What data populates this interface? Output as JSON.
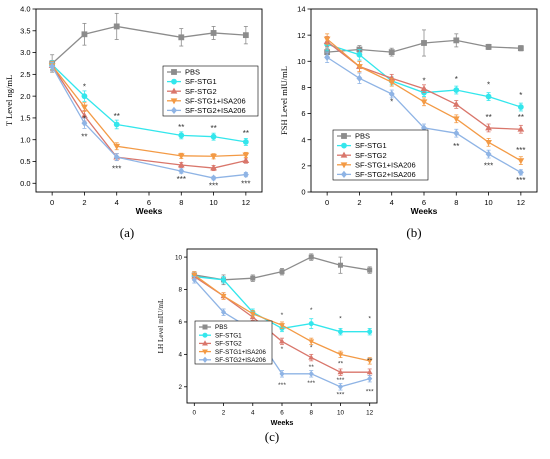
{
  "series_style": [
    {
      "name": "PBS",
      "color": "#8c8c8c",
      "marker": "square"
    },
    {
      "name": "SF-STG1",
      "color": "#33e6ec",
      "marker": "circle"
    },
    {
      "name": "SF-STG2",
      "color": "#d9766b",
      "marker": "triangle-up"
    },
    {
      "name": "SF-STG1+ISA206",
      "color": "#f39a45",
      "marker": "triangle-down"
    },
    {
      "name": "SF-STG2+ISA206",
      "color": "#8fb4e5",
      "marker": "diamond"
    }
  ],
  "chart_data": [
    {
      "type": "line",
      "panel_label": "(a)",
      "xlabel": "Weeks",
      "ylabel": "T Level ng/mL",
      "x": [
        0,
        2,
        4,
        8,
        10,
        12
      ],
      "xlim": [
        -1,
        13
      ],
      "xticks": [
        0,
        2,
        4,
        6,
        8,
        10,
        12
      ],
      "ylim": [
        -0.2,
        4.0
      ],
      "yticks": [
        "0.0",
        "0.5",
        "1.0",
        "1.5",
        "2.0",
        "2.5",
        "3.0",
        "3.5",
        "4.0"
      ],
      "legend": "right",
      "series": [
        {
          "name": "PBS",
          "values": [
            2.75,
            3.42,
            3.6,
            3.35,
            3.45,
            3.4
          ],
          "err": [
            0.2,
            0.25,
            0.3,
            0.2,
            0.15,
            0.2
          ]
        },
        {
          "name": "SF-STG1",
          "values": [
            2.72,
            2.0,
            1.35,
            1.1,
            1.07,
            0.95
          ],
          "err": [
            0.1,
            0.12,
            0.1,
            0.08,
            0.08,
            0.08
          ]
        },
        {
          "name": "SF-STG2",
          "values": [
            2.7,
            1.55,
            0.6,
            0.42,
            0.35,
            0.52
          ],
          "err": [
            0.1,
            0.12,
            0.08,
            0.06,
            0.06,
            0.06
          ]
        },
        {
          "name": "SF-STG1+ISA206",
          "values": [
            2.7,
            1.75,
            0.85,
            0.63,
            0.62,
            0.65
          ],
          "err": [
            0.1,
            0.1,
            0.08,
            0.06,
            0.06,
            0.06
          ]
        },
        {
          "name": "SF-STG2+ISA206",
          "values": [
            2.68,
            1.38,
            0.6,
            0.28,
            0.12,
            0.2
          ],
          "err": [
            0.1,
            0.12,
            0.08,
            0.05,
            0.04,
            0.05
          ]
        }
      ],
      "annotations": [
        {
          "text": "*",
          "x": 2,
          "y": 2.15
        },
        {
          "text": "*",
          "x": 2,
          "y": 1.42
        },
        {
          "text": "**",
          "x": 2,
          "y": 1.0
        },
        {
          "text": "**",
          "x": 4,
          "y": 1.48
        },
        {
          "text": "***",
          "x": 4,
          "y": 0.27
        },
        {
          "text": "**",
          "x": 8,
          "y": 1.22
        },
        {
          "text": "***",
          "x": 8,
          "y": 0.03
        },
        {
          "text": "**",
          "x": 10,
          "y": 1.2
        },
        {
          "text": "***",
          "x": 10,
          "y": -0.12
        },
        {
          "text": "**",
          "x": 12,
          "y": 1.08
        },
        {
          "text": "***",
          "x": 12,
          "y": -0.07
        }
      ]
    },
    {
      "type": "line",
      "panel_label": "(b)",
      "xlabel": "Weeks",
      "ylabel": "FSH Level mIU/mL",
      "x": [
        0,
        2,
        4,
        6,
        8,
        10,
        12
      ],
      "xlim": [
        -1,
        13
      ],
      "xticks": [
        0,
        2,
        4,
        6,
        8,
        10,
        12
      ],
      "ylim": [
        0,
        14
      ],
      "yticks": [
        "0",
        "2",
        "4",
        "6",
        "8",
        "10",
        "12",
        "14"
      ],
      "legend": "left",
      "series": [
        {
          "name": "PBS",
          "values": [
            10.7,
            10.9,
            10.7,
            11.4,
            11.6,
            11.1,
            11.0
          ],
          "err": [
            0.3,
            0.3,
            0.3,
            1.0,
            0.5,
            0.2,
            0.2
          ]
        },
        {
          "name": "SF-STG1",
          "values": [
            11.3,
            10.5,
            8.5,
            7.6,
            7.8,
            7.3,
            6.5
          ],
          "err": [
            0.5,
            0.4,
            0.3,
            0.3,
            0.3,
            0.3,
            0.3
          ]
        },
        {
          "name": "SF-STG2",
          "values": [
            11.5,
            9.6,
            8.7,
            7.9,
            6.7,
            4.9,
            4.8
          ],
          "err": [
            0.4,
            0.4,
            0.3,
            0.3,
            0.3,
            0.3,
            0.3
          ]
        },
        {
          "name": "SF-STG1+ISA206",
          "values": [
            11.7,
            9.6,
            8.4,
            6.9,
            5.6,
            3.8,
            2.4
          ],
          "err": [
            0.4,
            0.4,
            0.3,
            0.3,
            0.3,
            0.3,
            0.3
          ]
        },
        {
          "name": "SF-STG2+ISA206",
          "values": [
            10.3,
            8.7,
            7.5,
            4.9,
            4.5,
            2.9,
            1.5
          ],
          "err": [
            0.4,
            0.4,
            0.3,
            0.3,
            0.3,
            0.3,
            0.2
          ]
        }
      ],
      "annotations": [
        {
          "text": "*",
          "x": 4,
          "y": 6.7
        },
        {
          "text": "*",
          "x": 6,
          "y": 8.3
        },
        {
          "text": "**",
          "x": 6,
          "y": 3.9
        },
        {
          "text": "*",
          "x": 8,
          "y": 8.4
        },
        {
          "text": "**",
          "x": 8,
          "y": 3.3
        },
        {
          "text": "*",
          "x": 10,
          "y": 8.0
        },
        {
          "text": "**",
          "x": 10,
          "y": 5.5
        },
        {
          "text": "***",
          "x": 10,
          "y": 1.8
        },
        {
          "text": "*",
          "x": 12,
          "y": 7.2
        },
        {
          "text": "**",
          "x": 12,
          "y": 5.5
        },
        {
          "text": "***",
          "x": 12,
          "y": 3.0
        },
        {
          "text": "***",
          "x": 12,
          "y": 0.7
        }
      ]
    },
    {
      "type": "line",
      "panel_label": "(c)",
      "xlabel": "Weeks",
      "ylabel": "LH Level mIU/mL",
      "x": [
        0,
        2,
        4,
        6,
        8,
        10,
        12
      ],
      "xlim": [
        -0.5,
        12.5
      ],
      "xticks": [
        0,
        2,
        4,
        6,
        8,
        10,
        12
      ],
      "ylim": [
        1,
        10.5
      ],
      "yticks": [
        "2",
        "4",
        "6",
        "8",
        "10"
      ],
      "legend": "left",
      "series": [
        {
          "name": "PBS",
          "values": [
            8.9,
            8.6,
            8.7,
            9.1,
            10.0,
            9.5,
            9.2
          ],
          "err": [
            0.2,
            0.3,
            0.2,
            0.2,
            0.2,
            0.5,
            0.2
          ]
        },
        {
          "name": "SF-STG1",
          "values": [
            8.8,
            8.6,
            6.6,
            5.6,
            5.9,
            5.4,
            5.4
          ],
          "err": [
            0.2,
            0.2,
            0.2,
            0.2,
            0.3,
            0.2,
            0.2
          ]
        },
        {
          "name": "SF-STG2",
          "values": [
            8.8,
            7.6,
            6.3,
            4.8,
            3.8,
            2.9,
            2.9
          ],
          "err": [
            0.2,
            0.2,
            0.2,
            0.2,
            0.2,
            0.2,
            0.2
          ]
        },
        {
          "name": "SF-STG1+ISA206",
          "values": [
            8.9,
            7.6,
            6.5,
            5.8,
            4.8,
            4.0,
            3.6
          ],
          "err": [
            0.2,
            0.2,
            0.2,
            0.2,
            0.2,
            0.2,
            0.2
          ]
        },
        {
          "name": "SF-STG2+ISA206",
          "values": [
            8.6,
            6.6,
            5.5,
            2.8,
            2.8,
            2.0,
            2.5
          ],
          "err": [
            0.2,
            0.2,
            0.2,
            0.2,
            0.2,
            0.2,
            0.2
          ]
        }
      ],
      "annotations": [
        {
          "text": "*",
          "x": 4,
          "y": 4.9
        },
        {
          "text": "*",
          "x": 6,
          "y": 6.3
        },
        {
          "text": "*",
          "x": 6,
          "y": 4.2
        },
        {
          "text": "***",
          "x": 6,
          "y": 2.0
        },
        {
          "text": "*",
          "x": 8,
          "y": 6.6
        },
        {
          "text": "*",
          "x": 8,
          "y": 4.3
        },
        {
          "text": "**",
          "x": 8,
          "y": 3.1
        },
        {
          "text": "***",
          "x": 8,
          "y": 2.1
        },
        {
          "text": "*",
          "x": 10,
          "y": 6.1
        },
        {
          "text": "**",
          "x": 10,
          "y": 3.3
        },
        {
          "text": "***",
          "x": 10,
          "y": 2.3
        },
        {
          "text": "***",
          "x": 10,
          "y": 1.4
        },
        {
          "text": "*",
          "x": 12,
          "y": 6.1
        },
        {
          "text": "**",
          "x": 12,
          "y": 3.5
        },
        {
          "text": "***",
          "x": 12,
          "y": 1.6
        }
      ]
    }
  ]
}
